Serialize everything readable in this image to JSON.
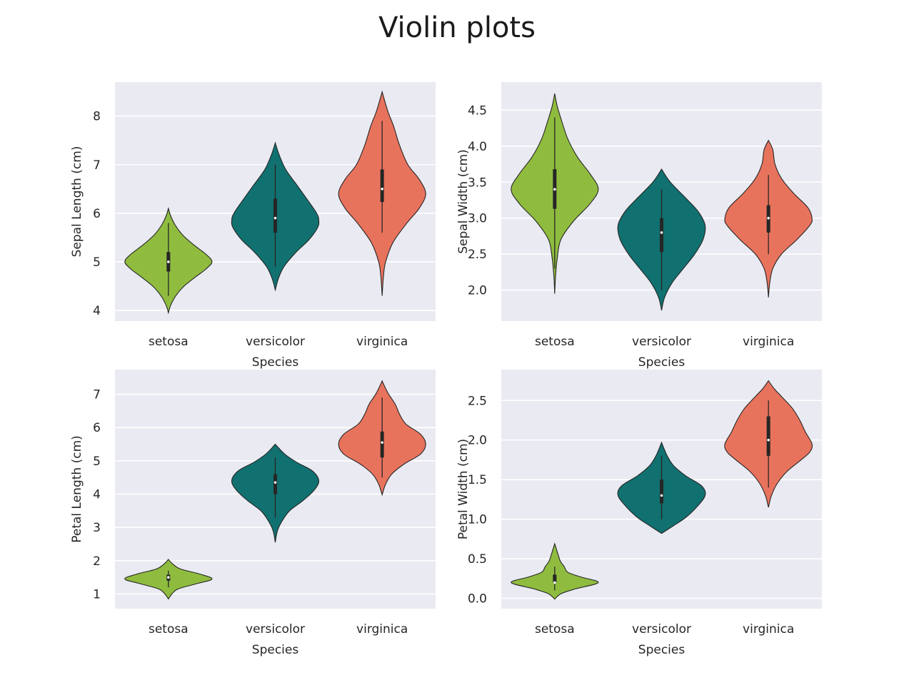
{
  "figure": {
    "title": "Violin plots"
  },
  "chart_data": [
    {
      "type": "violin",
      "xlabel": "Species",
      "ylabel": "Sepal Length (cm)",
      "categories": [
        "setosa",
        "versicolor",
        "virginica"
      ],
      "yticks": [
        4,
        5,
        6,
        7,
        8
      ],
      "ylim": [
        3.78,
        8.7
      ],
      "violins": [
        {
          "category": "setosa",
          "color": "#8fbc3f",
          "min": 3.95,
          "max": 6.1,
          "q1": 4.8,
          "median": 5.0,
          "q3": 5.2,
          "whisker_low": 4.3,
          "whisker_high": 5.8,
          "density": [
            [
              3.95,
              0.0
            ],
            [
              4.1,
              0.05
            ],
            [
              4.3,
              0.17
            ],
            [
              4.5,
              0.36
            ],
            [
              4.7,
              0.64
            ],
            [
              4.85,
              0.86
            ],
            [
              5.0,
              1.0
            ],
            [
              5.15,
              0.87
            ],
            [
              5.35,
              0.58
            ],
            [
              5.55,
              0.33
            ],
            [
              5.75,
              0.16
            ],
            [
              5.95,
              0.05
            ],
            [
              6.1,
              0.0
            ]
          ]
        },
        {
          "category": "versicolor",
          "color": "#117070",
          "min": 4.42,
          "max": 7.45,
          "q1": 5.6,
          "median": 5.9,
          "q3": 6.3,
          "whisker_low": 4.9,
          "whisker_high": 7.0,
          "density": [
            [
              4.42,
              0.0
            ],
            [
              4.65,
              0.07
            ],
            [
              4.9,
              0.2
            ],
            [
              5.2,
              0.48
            ],
            [
              5.45,
              0.77
            ],
            [
              5.7,
              0.97
            ],
            [
              5.85,
              1.0
            ],
            [
              6.0,
              0.95
            ],
            [
              6.3,
              0.72
            ],
            [
              6.6,
              0.48
            ],
            [
              6.9,
              0.24
            ],
            [
              7.2,
              0.09
            ],
            [
              7.45,
              0.0
            ]
          ]
        },
        {
          "category": "virginica",
          "color": "#e8735d",
          "min": 4.3,
          "max": 8.5,
          "q1": 6.23,
          "median": 6.5,
          "q3": 6.9,
          "whisker_low": 5.6,
          "whisker_high": 7.9,
          "density": [
            [
              4.3,
              0.0
            ],
            [
              4.7,
              0.03
            ],
            [
              5.0,
              0.08
            ],
            [
              5.4,
              0.25
            ],
            [
              5.8,
              0.57
            ],
            [
              6.1,
              0.85
            ],
            [
              6.4,
              1.0
            ],
            [
              6.7,
              0.85
            ],
            [
              7.0,
              0.59
            ],
            [
              7.4,
              0.4
            ],
            [
              7.8,
              0.26
            ],
            [
              8.1,
              0.13
            ],
            [
              8.5,
              0.0
            ]
          ]
        }
      ]
    },
    {
      "type": "violin",
      "xlabel": "Species",
      "ylabel": "Sepal Width (cm)",
      "categories": [
        "setosa",
        "versicolor",
        "virginica"
      ],
      "yticks": [
        2.0,
        2.5,
        3.0,
        3.5,
        4.0,
        4.5
      ],
      "ylim": [
        1.57,
        4.89
      ],
      "violins": [
        {
          "category": "setosa",
          "color": "#8fbc3f",
          "min": 1.95,
          "max": 4.73,
          "q1": 3.13,
          "median": 3.4,
          "q3": 3.68,
          "whisker_low": 2.3,
          "whisker_high": 4.4,
          "density": [
            [
              1.95,
              0.0
            ],
            [
              2.2,
              0.02
            ],
            [
              2.45,
              0.06
            ],
            [
              2.7,
              0.14
            ],
            [
              2.95,
              0.42
            ],
            [
              3.2,
              0.81
            ],
            [
              3.4,
              1.0
            ],
            [
              3.6,
              0.83
            ],
            [
              3.85,
              0.52
            ],
            [
              4.1,
              0.3
            ],
            [
              4.35,
              0.16
            ],
            [
              4.55,
              0.06
            ],
            [
              4.73,
              0.0
            ]
          ]
        },
        {
          "category": "versicolor",
          "color": "#117070",
          "min": 1.72,
          "max": 3.68,
          "q1": 2.53,
          "median": 2.8,
          "q3": 3.0,
          "whisker_low": 2.0,
          "whisker_high": 3.4,
          "density": [
            [
              1.72,
              0.0
            ],
            [
              1.9,
              0.07
            ],
            [
              2.1,
              0.24
            ],
            [
              2.3,
              0.5
            ],
            [
              2.5,
              0.76
            ],
            [
              2.7,
              0.95
            ],
            [
              2.9,
              1.0
            ],
            [
              3.1,
              0.83
            ],
            [
              3.3,
              0.52
            ],
            [
              3.5,
              0.2
            ],
            [
              3.68,
              0.0
            ]
          ]
        },
        {
          "category": "virginica",
          "color": "#e8735d",
          "min": 1.9,
          "max": 4.08,
          "q1": 2.8,
          "median": 3.0,
          "q3": 3.18,
          "whisker_low": 2.5,
          "whisker_high": 3.6,
          "density": [
            [
              1.9,
              0.0
            ],
            [
              2.1,
              0.03
            ],
            [
              2.3,
              0.1
            ],
            [
              2.5,
              0.3
            ],
            [
              2.7,
              0.65
            ],
            [
              2.9,
              0.95
            ],
            [
              3.0,
              1.0
            ],
            [
              3.15,
              0.9
            ],
            [
              3.35,
              0.57
            ],
            [
              3.55,
              0.3
            ],
            [
              3.75,
              0.15
            ],
            [
              3.95,
              0.1
            ],
            [
              4.08,
              0.0
            ]
          ]
        }
      ]
    },
    {
      "type": "violin",
      "xlabel": "Species",
      "ylabel": "Petal Length (cm)",
      "categories": [
        "setosa",
        "versicolor",
        "virginica"
      ],
      "yticks": [
        1,
        2,
        3,
        4,
        5,
        6,
        7
      ],
      "ylim": [
        0.56,
        7.74
      ],
      "violins": [
        {
          "category": "setosa",
          "color": "#8fbc3f",
          "min": 0.85,
          "max": 2.04,
          "q1": 1.4,
          "median": 1.5,
          "q3": 1.58,
          "whisker_low": 1.2,
          "whisker_high": 1.7,
          "density": [
            [
              0.85,
              0.0
            ],
            [
              1.0,
              0.08
            ],
            [
              1.15,
              0.22
            ],
            [
              1.3,
              0.62
            ],
            [
              1.45,
              1.0
            ],
            [
              1.6,
              0.72
            ],
            [
              1.75,
              0.28
            ],
            [
              1.9,
              0.1
            ],
            [
              2.04,
              0.0
            ]
          ]
        },
        {
          "category": "versicolor",
          "color": "#117070",
          "min": 2.55,
          "max": 5.5,
          "q1": 4.0,
          "median": 4.35,
          "q3": 4.6,
          "whisker_low": 3.3,
          "whisker_high": 5.1,
          "density": [
            [
              2.55,
              0.0
            ],
            [
              2.9,
              0.05
            ],
            [
              3.2,
              0.16
            ],
            [
              3.5,
              0.33
            ],
            [
              3.8,
              0.63
            ],
            [
              4.1,
              0.88
            ],
            [
              4.4,
              1.0
            ],
            [
              4.7,
              0.85
            ],
            [
              4.95,
              0.5
            ],
            [
              5.2,
              0.22
            ],
            [
              5.5,
              0.0
            ]
          ]
        },
        {
          "category": "virginica",
          "color": "#e8735d",
          "min": 3.98,
          "max": 7.4,
          "q1": 5.1,
          "median": 5.55,
          "q3": 5.88,
          "whisker_low": 4.5,
          "whisker_high": 6.9,
          "density": [
            [
              3.98,
              0.0
            ],
            [
              4.3,
              0.08
            ],
            [
              4.6,
              0.22
            ],
            [
              4.9,
              0.5
            ],
            [
              5.2,
              0.88
            ],
            [
              5.5,
              1.0
            ],
            [
              5.8,
              0.88
            ],
            [
              6.1,
              0.55
            ],
            [
              6.4,
              0.4
            ],
            [
              6.7,
              0.3
            ],
            [
              7.0,
              0.15
            ],
            [
              7.2,
              0.07
            ],
            [
              7.4,
              0.0
            ]
          ]
        }
      ]
    },
    {
      "type": "violin",
      "xlabel": "Species",
      "ylabel": "Petal Width (cm)",
      "categories": [
        "setosa",
        "versicolor",
        "virginica"
      ],
      "yticks": [
        0.0,
        0.5,
        1.0,
        1.5,
        2.0,
        2.5
      ],
      "ylim": [
        -0.13,
        2.89
      ],
      "violins": [
        {
          "category": "setosa",
          "color": "#8fbc3f",
          "min": -0.01,
          "max": 0.69,
          "q1": 0.2,
          "median": 0.2,
          "q3": 0.3,
          "whisker_low": 0.1,
          "whisker_high": 0.4,
          "density": [
            [
              -0.01,
              0.0
            ],
            [
              0.06,
              0.15
            ],
            [
              0.12,
              0.48
            ],
            [
              0.2,
              1.0
            ],
            [
              0.27,
              0.6
            ],
            [
              0.33,
              0.3
            ],
            [
              0.4,
              0.22
            ],
            [
              0.47,
              0.13
            ],
            [
              0.55,
              0.08
            ],
            [
              0.62,
              0.04
            ],
            [
              0.69,
              0.0
            ]
          ]
        },
        {
          "category": "versicolor",
          "color": "#117070",
          "min": 0.82,
          "max": 1.97,
          "q1": 1.2,
          "median": 1.3,
          "q3": 1.5,
          "whisker_low": 1.0,
          "whisker_high": 1.8,
          "density": [
            [
              0.82,
              0.0
            ],
            [
              0.92,
              0.28
            ],
            [
              1.02,
              0.55
            ],
            [
              1.15,
              0.8
            ],
            [
              1.3,
              1.0
            ],
            [
              1.42,
              0.92
            ],
            [
              1.55,
              0.55
            ],
            [
              1.68,
              0.27
            ],
            [
              1.8,
              0.13
            ],
            [
              1.9,
              0.05
            ],
            [
              1.97,
              0.0
            ]
          ]
        },
        {
          "category": "virginica",
          "color": "#e8735d",
          "min": 1.15,
          "max": 2.75,
          "q1": 1.8,
          "median": 2.0,
          "q3": 2.3,
          "whisker_low": 1.4,
          "whisker_high": 2.5,
          "density": [
            [
              1.15,
              0.0
            ],
            [
              1.3,
              0.07
            ],
            [
              1.45,
              0.2
            ],
            [
              1.6,
              0.42
            ],
            [
              1.75,
              0.75
            ],
            [
              1.85,
              0.95
            ],
            [
              1.95,
              1.0
            ],
            [
              2.1,
              0.85
            ],
            [
              2.25,
              0.72
            ],
            [
              2.4,
              0.55
            ],
            [
              2.55,
              0.3
            ],
            [
              2.65,
              0.13
            ],
            [
              2.75,
              0.0
            ]
          ]
        }
      ]
    }
  ]
}
